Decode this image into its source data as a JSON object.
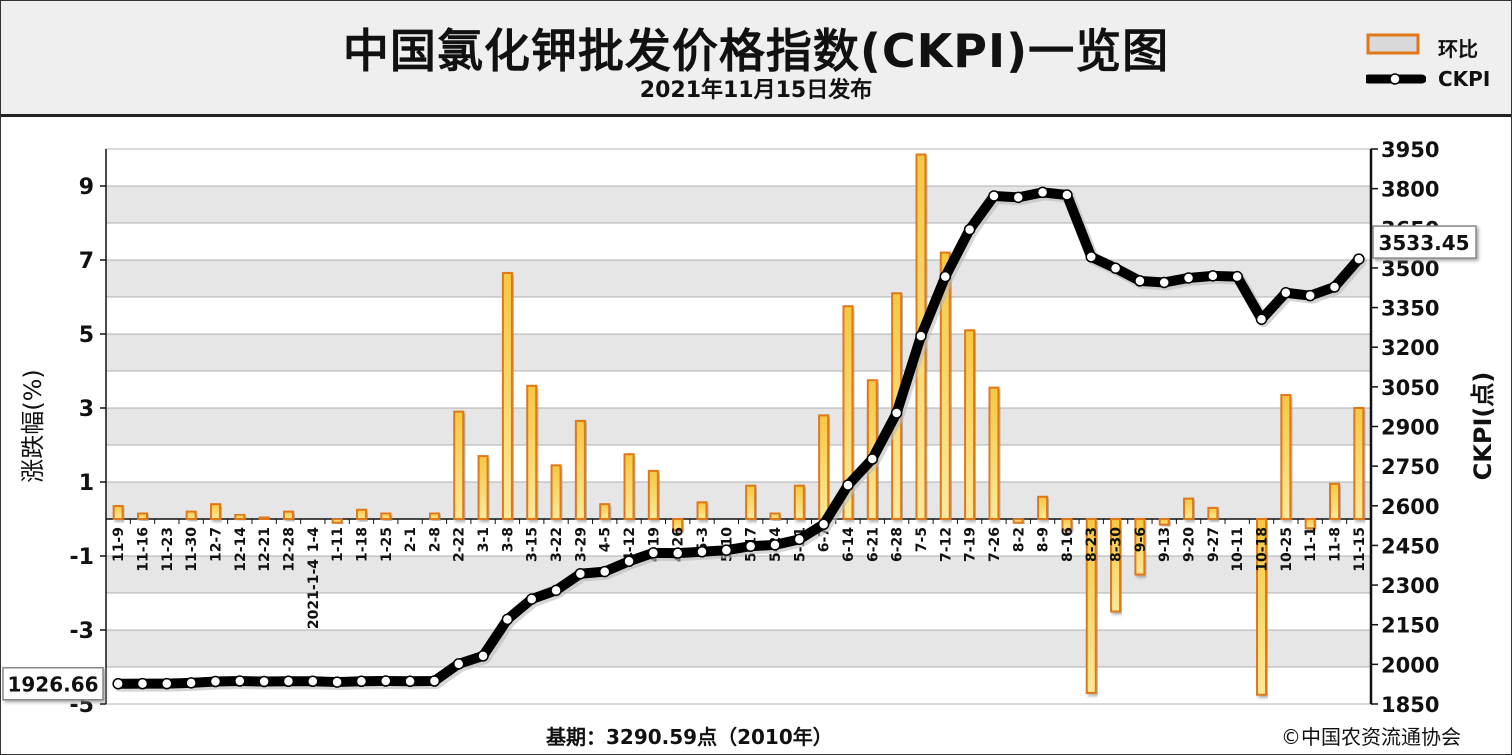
{
  "header": {
    "title": "中国氯化钾批发价格指数(CKPI)一览图",
    "subtitle": "2021年11月15日发布"
  },
  "legend": {
    "bar_label": "环比",
    "line_label": "CKPI"
  },
  "footer": {
    "base": "基期：3290.59点（2010年）",
    "copyright": "©中国农资流通协会"
  },
  "colors": {
    "bar_fill_top": "#f5c842",
    "bar_fill_bottom": "#fbe99a",
    "bar_border": "#e07818",
    "line": "#000000",
    "marker_fill": "#ffffff",
    "band": "#e6e6e6"
  },
  "chart_data": {
    "type": "bar+line",
    "title": "中国氯化钾批发价格指数(CKPI)一览图",
    "ylabel_left": "涨跌幅(%)",
    "ylabel_right": "CKPI(点)",
    "ylim_left": [
      -5,
      10
    ],
    "yticks_left": [
      -5,
      -3,
      -1,
      1,
      3,
      5,
      7,
      9
    ],
    "ylim_right": [
      1850,
      3950
    ],
    "yticks_right": [
      1850,
      2000,
      2150,
      2300,
      2450,
      2600,
      2750,
      2900,
      3050,
      3200,
      3350,
      3500,
      3650,
      3800,
      3950
    ],
    "year_label": "2021-1-4",
    "categories": [
      "11-9",
      "11-16",
      "11-23",
      "11-30",
      "12-7",
      "12-14",
      "12-21",
      "12-28",
      "1-4",
      "1-11",
      "1-18",
      "1-25",
      "2-1",
      "2-8",
      "2-22",
      "3-1",
      "3-8",
      "3-15",
      "3-22",
      "3-29",
      "4-5",
      "4-12",
      "4-19",
      "4-26",
      "5-3",
      "5-10",
      "5-17",
      "5-24",
      "5-31",
      "6-7",
      "6-14",
      "6-21",
      "6-28",
      "7-5",
      "7-12",
      "7-19",
      "7-26",
      "8-2",
      "8-9",
      "8-16",
      "8-23",
      "8-30",
      "9-6",
      "9-13",
      "9-20",
      "9-27",
      "10-11",
      "10-18",
      "10-25",
      "11-1",
      "11-8",
      "11-15"
    ],
    "series": [
      {
        "name": "环比",
        "type": "bar",
        "values": [
          0.35,
          0.15,
          0.0,
          0.2,
          0.4,
          0.12,
          0.05,
          0.2,
          0.0,
          -0.1,
          0.25,
          0.15,
          0.0,
          0.15,
          2.9,
          1.7,
          6.65,
          3.6,
          1.45,
          2.65,
          0.4,
          1.75,
          1.3,
          -0.3,
          0.45,
          0.0,
          0.9,
          0.15,
          0.9,
          2.8,
          5.75,
          3.75,
          6.1,
          9.85,
          7.2,
          5.1,
          3.55,
          -0.1,
          0.6,
          -0.3,
          -4.7,
          -2.5,
          -1.5,
          -0.15,
          0.55,
          0.3,
          0.0,
          -4.75,
          3.35,
          -0.25,
          0.95,
          3.0
        ]
      },
      {
        "name": "CKPI",
        "type": "line",
        "values": [
          1926.66,
          1927,
          1927,
          1930,
          1935,
          1937,
          1935,
          1936,
          1936,
          1933,
          1936,
          1937,
          1936,
          1937,
          2002,
          2032,
          2170,
          2247,
          2280,
          2343,
          2351,
          2390,
          2422,
          2421,
          2426,
          2432,
          2447,
          2452,
          2473,
          2530,
          2678,
          2777,
          2951,
          3242,
          3467,
          3645,
          3772,
          3767,
          3786,
          3776,
          3542,
          3499,
          3451,
          3445,
          3462,
          3470,
          3467,
          3306,
          3406,
          3395,
          3428,
          3533.45
        ]
      }
    ],
    "annotations": {
      "first_value": "1926.66",
      "last_value": "3533.45"
    }
  }
}
